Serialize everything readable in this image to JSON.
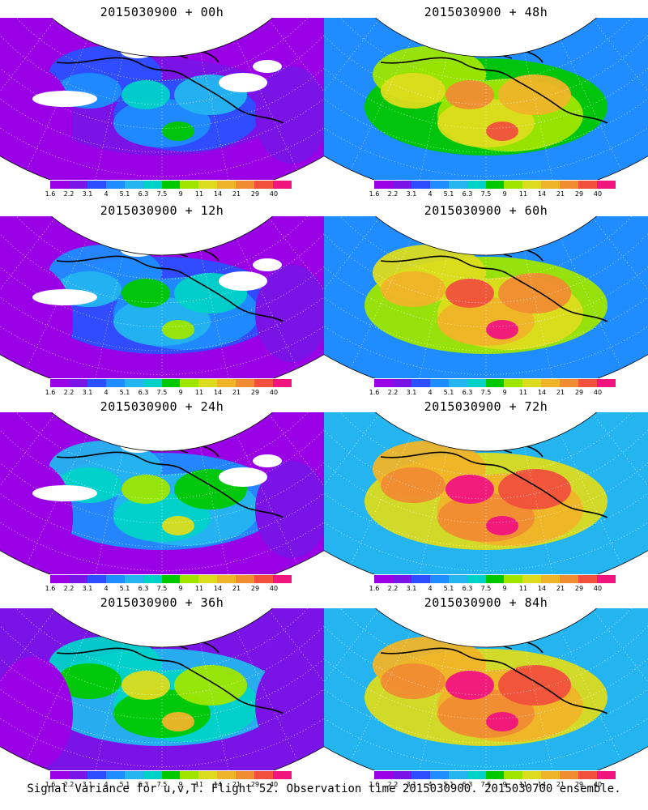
{
  "panels": [
    {
      "title": "2015030900 + 00h",
      "level": 0
    },
    {
      "title": "2015030900 + 48h",
      "level": 4
    },
    {
      "title": "2015030900 + 12h",
      "level": 1
    },
    {
      "title": "2015030900 + 60h",
      "level": 5
    },
    {
      "title": "2015030900 + 24h",
      "level": 2
    },
    {
      "title": "2015030900 + 72h",
      "level": 6
    },
    {
      "title": "2015030900 + 36h",
      "level": 3
    },
    {
      "title": "2015030900 + 84h",
      "level": 7
    }
  ],
  "colorbar": {
    "labels": [
      "1.6",
      "2.2",
      "3.1",
      "4",
      "5.1",
      "6.3",
      "7.5",
      "9",
      "11",
      "14",
      "21",
      "29",
      "40"
    ],
    "colors": [
      "#9a00e6",
      "#7a14e6",
      "#2b4fff",
      "#1f8cff",
      "#24b4f0",
      "#00d2c8",
      "#00c800",
      "#9ee600",
      "#dcdc1e",
      "#f0b428",
      "#f08c32",
      "#f0503c",
      "#f0147f"
    ]
  },
  "caption": "Signal Variance for u,v,T. Flight 52. Observation time 2015030900. 2015030700 ensemble."
}
